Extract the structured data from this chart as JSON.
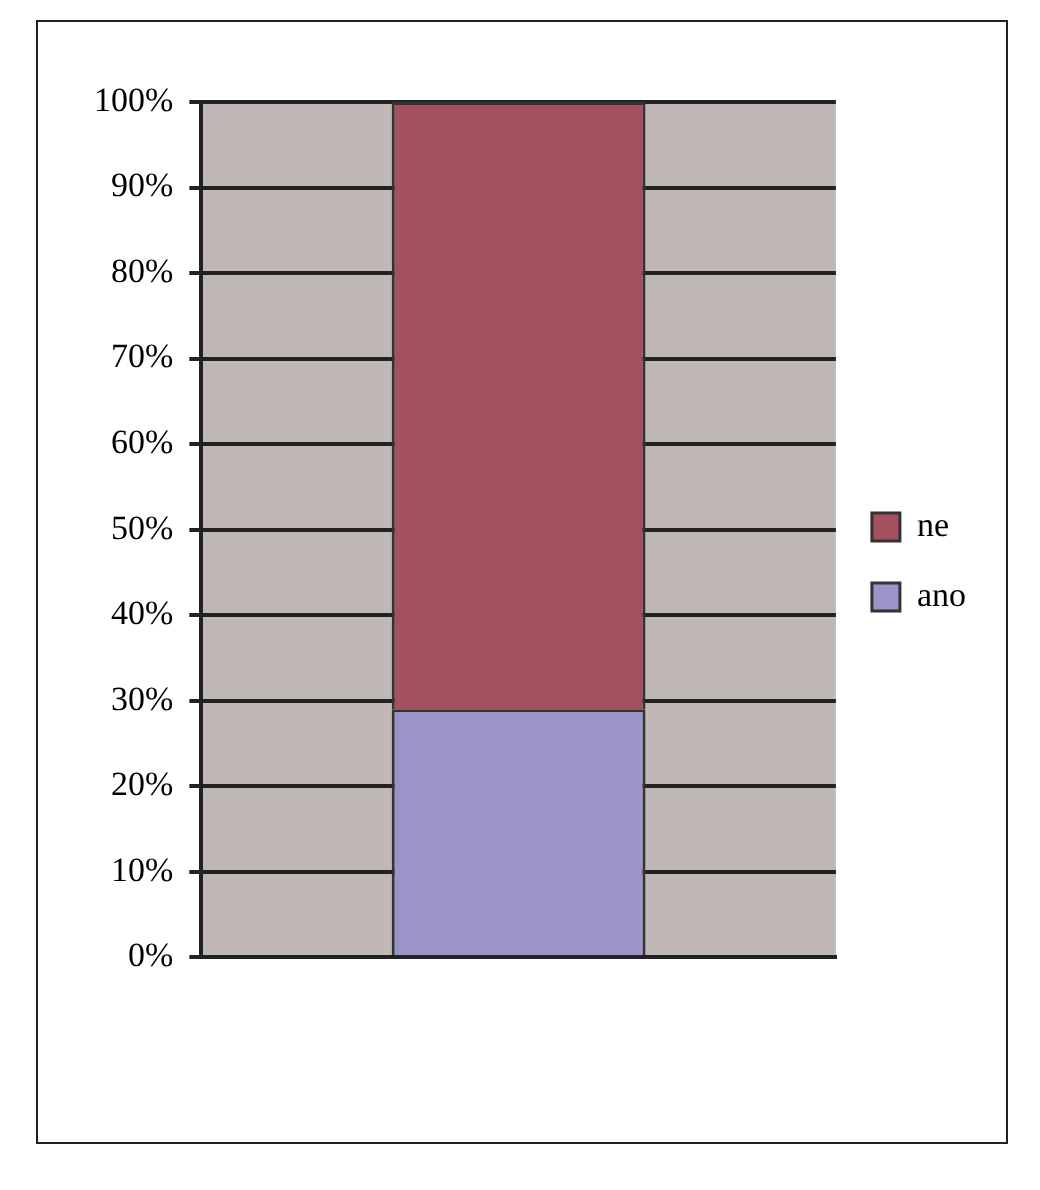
{
  "chart_data": {
    "type": "bar",
    "stacked": true,
    "categories": [
      null
    ],
    "series": [
      {
        "name": "ano",
        "color": "#9b94c8",
        "values": [
          29
        ]
      },
      {
        "name": "ne",
        "color": "#a5505e",
        "values": [
          71
        ]
      }
    ],
    "ylim": [
      0,
      100
    ],
    "yticks": [
      {
        "value": 0,
        "label": "0%"
      },
      {
        "value": 10,
        "label": "10%"
      },
      {
        "value": 20,
        "label": "20%"
      },
      {
        "value": 30,
        "label": "30%"
      },
      {
        "value": 40,
        "label": "40%"
      },
      {
        "value": 50,
        "label": "50%"
      },
      {
        "value": 60,
        "label": "60%"
      },
      {
        "value": 70,
        "label": "70%"
      },
      {
        "value": 80,
        "label": "80%"
      },
      {
        "value": 90,
        "label": "90%"
      },
      {
        "value": 100,
        "label": "100%"
      }
    ],
    "grid": "y",
    "legend": "right"
  }
}
